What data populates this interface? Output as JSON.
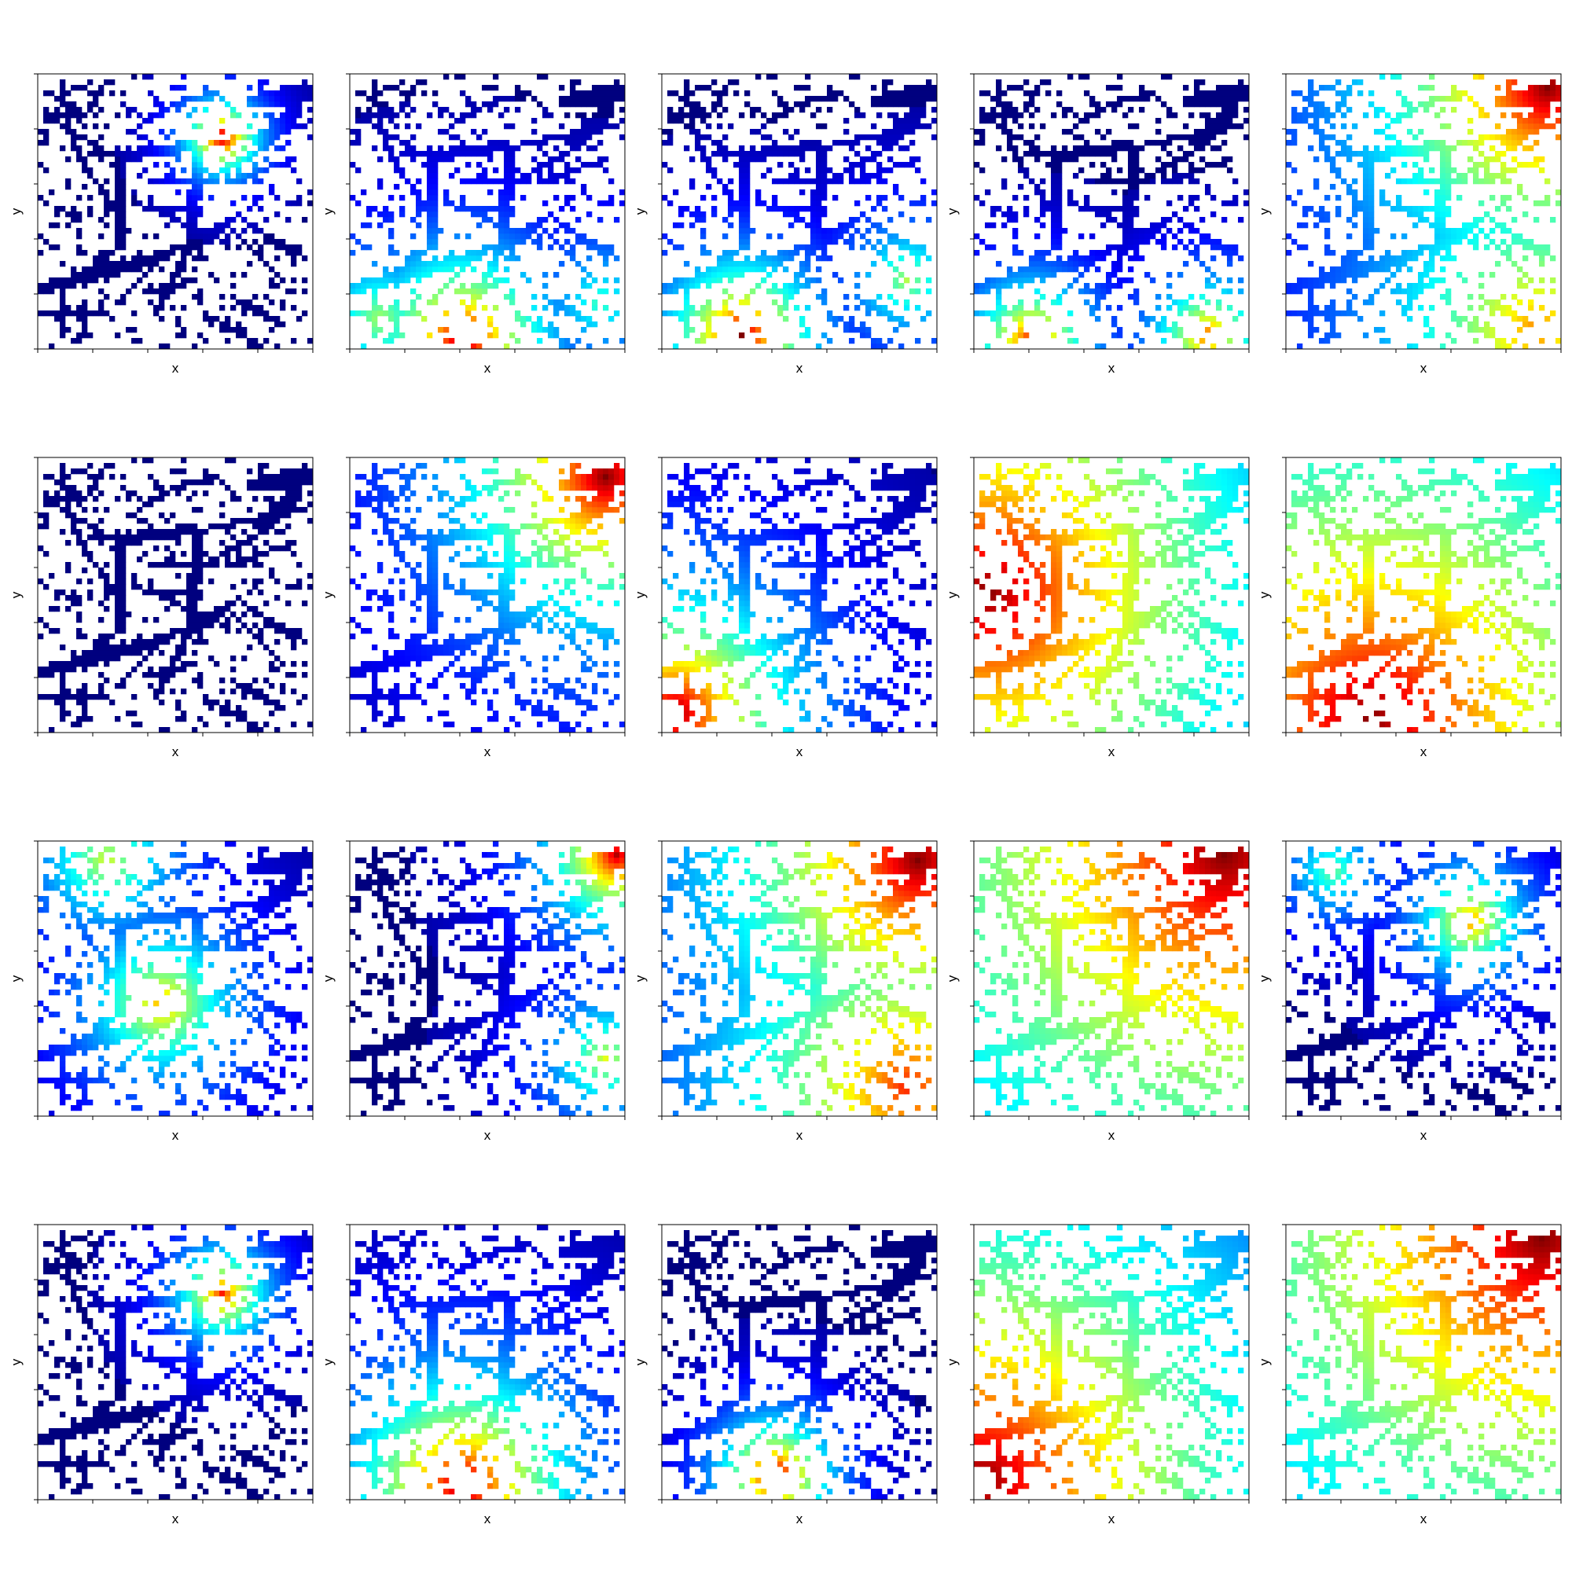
{
  "figure": {
    "rows": 4,
    "cols": 5,
    "colormap": "jet",
    "colormap_stops": [
      "#00007f",
      "#0000ff",
      "#007fff",
      "#00ffff",
      "#7fff7f",
      "#ffff00",
      "#ff7f00",
      "#ff0000",
      "#7f0000"
    ],
    "background_color": "#ffffff",
    "empty_cell_color": "#ffffff",
    "frame_color": "#000000"
  },
  "chart_data": {
    "type": "heatmap",
    "grid_size": 50,
    "xlabel": "x",
    "ylabel": "y",
    "panel_count": 20,
    "panels": [
      {
        "row": 1,
        "col": 1,
        "xlabel": "x",
        "ylabel": "y",
        "sources": [
          {
            "x": 33,
            "y": 38,
            "v": 1.0
          }
        ],
        "spread": 6
      },
      {
        "row": 1,
        "col": 2,
        "xlabel": "x",
        "ylabel": "y",
        "sources": [
          {
            "x": 20,
            "y": 1,
            "v": 1.0
          },
          {
            "x": 5,
            "y": 5,
            "v": 0.55
          },
          {
            "x": 45,
            "y": 8,
            "v": 0.45
          }
        ],
        "spread": 14
      },
      {
        "row": 1,
        "col": 3,
        "xlabel": "x",
        "ylabel": "y",
        "sources": [
          {
            "x": 14,
            "y": 2,
            "v": 1.0
          },
          {
            "x": 44,
            "y": 12,
            "v": 0.55
          }
        ],
        "spread": 12
      },
      {
        "row": 1,
        "col": 4,
        "xlabel": "x",
        "ylabel": "y",
        "sources": [
          {
            "x": 10,
            "y": 1,
            "v": 0.9
          },
          {
            "x": 42,
            "y": 2,
            "v": 0.8
          }
        ],
        "spread": 10
      },
      {
        "row": 1,
        "col": 5,
        "xlabel": "x",
        "ylabel": "y",
        "sources": [
          {
            "x": 47,
            "y": 47,
            "v": 1.0
          },
          {
            "x": 45,
            "y": 3,
            "v": 0.75
          }
        ],
        "spread": 30
      },
      {
        "row": 2,
        "col": 1,
        "xlabel": "x",
        "ylabel": "y",
        "sources": [],
        "spread": 1
      },
      {
        "row": 2,
        "col": 2,
        "xlabel": "x",
        "ylabel": "y",
        "sources": [
          {
            "x": 46,
            "y": 46,
            "v": 1.0
          }
        ],
        "spread": 24
      },
      {
        "row": 2,
        "col": 3,
        "xlabel": "x",
        "ylabel": "y",
        "sources": [
          {
            "x": 2,
            "y": 3,
            "v": 1.0
          }
        ],
        "spread": 20
      },
      {
        "row": 2,
        "col": 4,
        "xlabel": "x",
        "ylabel": "y",
        "sources": [
          {
            "x": 2,
            "y": 25,
            "v": 1.0
          }
        ],
        "spread": 48
      },
      {
        "row": 2,
        "col": 5,
        "xlabel": "x",
        "ylabel": "y",
        "sources": [
          {
            "x": 15,
            "y": 2,
            "v": 1.0
          }
        ],
        "spread": 55
      },
      {
        "row": 3,
        "col": 1,
        "xlabel": "x",
        "ylabel": "y",
        "sources": [
          {
            "x": 22,
            "y": 20,
            "v": 0.72
          },
          {
            "x": 12,
            "y": 46,
            "v": 0.6
          }
        ],
        "spread": 14
      },
      {
        "row": 3,
        "col": 2,
        "xlabel": "x",
        "ylabel": "y",
        "sources": [
          {
            "x": 48,
            "y": 47,
            "v": 0.95
          },
          {
            "x": 46,
            "y": 10,
            "v": 0.6
          }
        ],
        "spread": 12
      },
      {
        "row": 3,
        "col": 3,
        "xlabel": "x",
        "ylabel": "y",
        "sources": [
          {
            "x": 46,
            "y": 46,
            "v": 1.0
          },
          {
            "x": 44,
            "y": 5,
            "v": 0.85
          }
        ],
        "spread": 34
      },
      {
        "row": 3,
        "col": 4,
        "xlabel": "x",
        "ylabel": "y",
        "sources": [
          {
            "x": 45,
            "y": 47,
            "v": 1.0
          }
        ],
        "spread": 60
      },
      {
        "row": 3,
        "col": 5,
        "xlabel": "x",
        "ylabel": "y",
        "sources": [
          {
            "x": 33,
            "y": 35,
            "v": 0.75
          },
          {
            "x": 8,
            "y": 44,
            "v": 0.5
          }
        ],
        "spread": 10
      },
      {
        "row": 4,
        "col": 1,
        "xlabel": "x",
        "ylabel": "y",
        "sources": [
          {
            "x": 33,
            "y": 37,
            "v": 0.85
          }
        ],
        "spread": 8
      },
      {
        "row": 4,
        "col": 2,
        "xlabel": "x",
        "ylabel": "y",
        "sources": [
          {
            "x": 20,
            "y": 2,
            "v": 1.0
          }
        ],
        "spread": 18
      },
      {
        "row": 4,
        "col": 3,
        "xlabel": "x",
        "ylabel": "y",
        "sources": [
          {
            "x": 20,
            "y": 4,
            "v": 1.0
          }
        ],
        "spread": 9
      },
      {
        "row": 4,
        "col": 4,
        "xlabel": "x",
        "ylabel": "y",
        "sources": [
          {
            "x": 1,
            "y": 3,
            "v": 1.0
          }
        ],
        "spread": 50
      },
      {
        "row": 4,
        "col": 5,
        "xlabel": "x",
        "ylabel": "y",
        "sources": [
          {
            "x": 46,
            "y": 47,
            "v": 1.0
          }
        ],
        "spread": 60
      }
    ]
  }
}
